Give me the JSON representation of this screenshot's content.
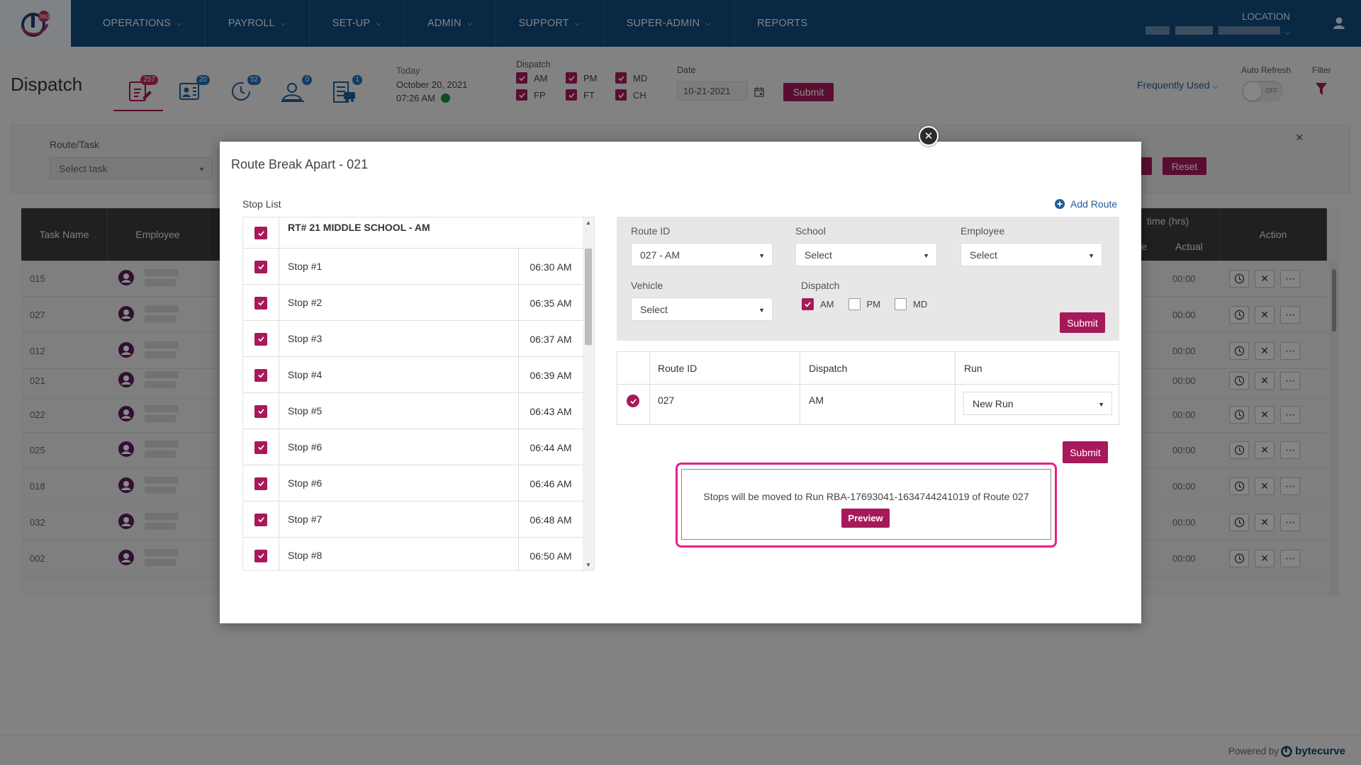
{
  "nav": {
    "items": [
      {
        "label": "OPERATIONS",
        "has_menu": true
      },
      {
        "label": "PAYROLL",
        "has_menu": true
      },
      {
        "label": "SET-UP",
        "has_menu": true
      },
      {
        "label": "ADMIN",
        "has_menu": true
      },
      {
        "label": "SUPPORT",
        "has_menu": true
      },
      {
        "label": "SUPER-ADMIN",
        "has_menu": true
      },
      {
        "label": "REPORTS",
        "has_menu": false
      }
    ],
    "location_label": "LOCATION"
  },
  "header": {
    "title": "Dispatch",
    "icon_badges": [
      "257",
      "20",
      "52",
      "0",
      "1"
    ],
    "today_label": "Today",
    "today_date": "October 20, 2021",
    "today_time": "07:26 AM",
    "dispatch_label": "Dispatch",
    "dispatch_options": [
      "AM",
      "PM",
      "MD",
      "FP",
      "FT",
      "CH"
    ],
    "date_label": "Date",
    "date_value": "10-21-2021",
    "submit_label": "Submit",
    "frequently_used": "Frequently Used",
    "auto_refresh_label": "Auto Refresh",
    "auto_refresh_state": "OFF",
    "filter_label": "Filter"
  },
  "filter_panel": {
    "route_task_label": "Route/Task",
    "route_task_placeholder": "Select task",
    "reset_label": "Reset",
    "close": "×"
  },
  "table": {
    "headers": {
      "task_name": "Task Name",
      "employee": "Employee",
      "time_hrs": "time (hrs)",
      "time_sub": "e",
      "actual": "Actual",
      "action": "Action"
    },
    "rows": [
      {
        "task": "015",
        "actual": "00:00"
      },
      {
        "task": "027",
        "actual": "00:00"
      },
      {
        "task": "012",
        "actual": "00:00"
      },
      {
        "task": "021",
        "actual": "00:00"
      },
      {
        "task": "022",
        "actual": "00:00"
      },
      {
        "task": "025",
        "actual": "00:00"
      },
      {
        "task": "018",
        "actual": "00:00"
      },
      {
        "task": "032",
        "actual": "00:00"
      },
      {
        "task": "002",
        "actual": "00:00"
      }
    ]
  },
  "modal": {
    "title": "Route Break Apart - 021",
    "stop_list_label": "Stop List",
    "route_header": "RT# 21 MIDDLE SCHOOL - AM",
    "stops": [
      {
        "name": "Stop #1",
        "time": "06:30 AM"
      },
      {
        "name": "Stop #2",
        "time": "06:35 AM"
      },
      {
        "name": "Stop #3",
        "time": "06:37 AM"
      },
      {
        "name": "Stop #4",
        "time": "06:39 AM"
      },
      {
        "name": "Stop #5",
        "time": "06:43 AM"
      },
      {
        "name": "Stop #6",
        "time": "06:44 AM"
      },
      {
        "name": "Stop #6",
        "time": "06:46 AM"
      },
      {
        "name": "Stop #7",
        "time": "06:48 AM"
      },
      {
        "name": "Stop #8",
        "time": "06:50 AM"
      }
    ],
    "add_route_label": "Add Route",
    "form": {
      "route_id_label": "Route ID",
      "route_id_value": "027 - AM",
      "school_label": "School",
      "school_value": "Select",
      "employee_label": "Employee",
      "employee_value": "Select",
      "vehicle_label": "Vehicle",
      "vehicle_value": "Select",
      "dispatch_label": "Dispatch",
      "dispatch_options": [
        {
          "label": "AM",
          "checked": true
        },
        {
          "label": "PM",
          "checked": false
        },
        {
          "label": "MD",
          "checked": false
        }
      ],
      "submit_label": "Submit"
    },
    "route_table": {
      "headers": {
        "route_id": "Route ID",
        "dispatch": "Dispatch",
        "run": "Run"
      },
      "row": {
        "route_id": "027",
        "dispatch": "AM",
        "run": "New Run"
      }
    },
    "submit_label": "Submit",
    "message": "Stops will be moved to Run RBA-17693041-1634744241019 of Route 027",
    "preview_label": "Preview"
  },
  "footer": {
    "powered_by": "Powered by",
    "brand": "bytecurve"
  },
  "colors": {
    "nav_bg": "#10497a",
    "accent": "#a7195a",
    "highlight_border": "#e6218a",
    "link": "#1f5d96"
  }
}
